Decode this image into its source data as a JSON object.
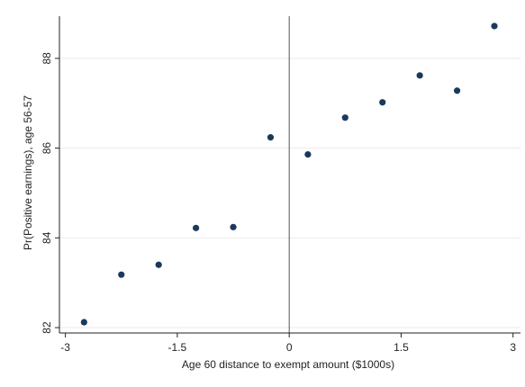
{
  "chart_data": {
    "type": "scatter",
    "x_label": "Age 60 distance to exempt amount ($1000s)",
    "y_label": "Pr(Positive earnings), age 56-57",
    "x": [
      -2.75,
      -2.25,
      -1.75,
      -1.25,
      -0.75,
      -0.25,
      0.25,
      0.75,
      1.25,
      1.75,
      2.25,
      2.75
    ],
    "values": [
      82.12,
      83.18,
      83.4,
      84.22,
      84.24,
      86.24,
      85.86,
      86.68,
      87.02,
      87.62,
      87.28,
      88.72
    ],
    "color": "#1a3a5c",
    "xlim": [
      -3.08,
      3.1
    ],
    "xticks": [
      -3,
      -1.5,
      0,
      1.5,
      3
    ],
    "ylim": [
      81.88,
      88.94
    ],
    "yticks": [
      82,
      84,
      86,
      88
    ],
    "vline": 0,
    "grid": true
  }
}
